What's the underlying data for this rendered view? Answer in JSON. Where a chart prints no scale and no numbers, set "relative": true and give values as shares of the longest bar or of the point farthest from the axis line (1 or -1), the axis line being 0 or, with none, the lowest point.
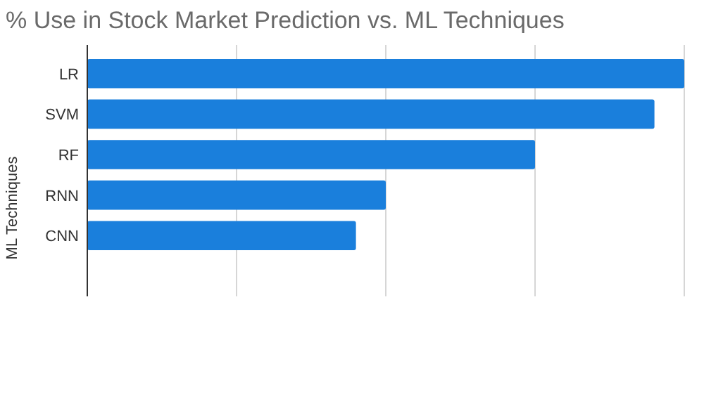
{
  "chart_data": {
    "type": "bar",
    "orientation": "horizontal",
    "relative": true,
    "title": "% Use in Stock Market Prediction vs. ML Techniques",
    "ylabel": "ML Techniques",
    "categories": [
      "LR",
      "SVM",
      "RF",
      "RNN",
      "CNN",
      null
    ],
    "values": [
      1,
      0.95,
      0.75,
      0.5,
      0.45,
      null
    ],
    "color": "#1a7fdc",
    "grid": "x"
  }
}
